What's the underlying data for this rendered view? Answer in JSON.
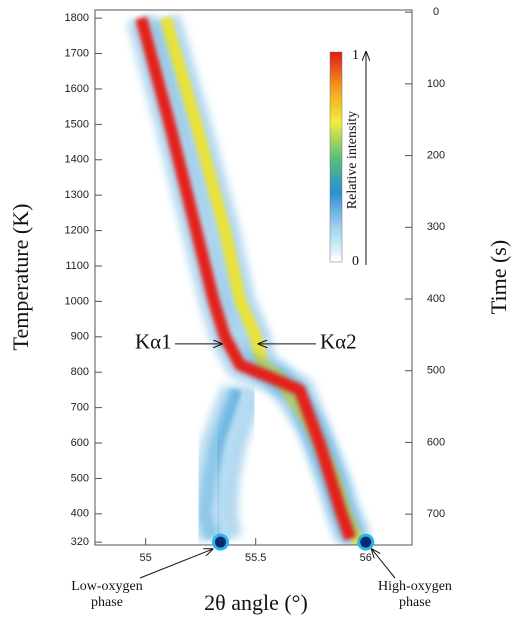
{
  "chart_data": {
    "type": "heatmap-trace",
    "xlabel": "2θ angle (°)",
    "ylabel": "Temperature (K)",
    "y2label": "Time (s)",
    "xlim": [
      54.77,
      56.21
    ],
    "xticks": [
      55,
      55.5,
      56
    ],
    "ylim": [
      312,
      1823
    ],
    "yticks": [
      320,
      400,
      500,
      600,
      700,
      800,
      900,
      1000,
      1100,
      1200,
      1300,
      1400,
      1500,
      1600,
      1700,
      1800
    ],
    "y2lim": [
      743,
      -3
    ],
    "y2ticks": [
      0,
      100,
      200,
      300,
      400,
      500,
      600,
      700
    ],
    "colorbar": {
      "label": "Relative intensity",
      "ticks": [
        0,
        1
      ],
      "colors": [
        "#ffffff",
        "#9fd0ee",
        "#2b8fd0",
        "#5cc07a",
        "#f2ee3a",
        "#f39a1e",
        "#e3181b"
      ]
    },
    "series": [
      {
        "color": "#8ec9ea",
        "x": [
          55.41,
          55.32,
          55.29,
          55.27,
          55.3
        ],
        "values": [
          750,
          600,
          500,
          400,
          330
        ]
      },
      {
        "color": "#b5dcf2",
        "x": [
          55.47,
          55.39,
          55.36,
          55.35,
          55.37
        ],
        "values": [
          750,
          600,
          500,
          400,
          330
        ]
      },
      {
        "color": "#e8e23a",
        "x": [
          55.09,
          55.23,
          55.36,
          55.43,
          55.5,
          55.53,
          55.6,
          55.75,
          55.86,
          55.91,
          55.96,
          55.99
        ],
        "values": [
          1800,
          1500,
          1200,
          1000,
          900,
          820,
          790,
          650,
          500,
          400,
          330,
          320
        ]
      },
      {
        "color": "#e3201b",
        "x": [
          54.98,
          55.11,
          55.23,
          55.31,
          55.36,
          55.43,
          55.55,
          55.7,
          55.79,
          55.84,
          55.89,
          55.93
        ],
        "values": [
          1800,
          1500,
          1200,
          1000,
          900,
          820,
          790,
          750,
          600,
          500,
          400,
          330
        ]
      }
    ],
    "annotations": [
      {
        "text": "Kα1",
        "x": 55.36,
        "y": 880
      },
      {
        "text": "Kα2",
        "x": 55.5,
        "y": 880
      }
    ],
    "markers": [
      {
        "x": 55.34,
        "y": 320,
        "label": [
          "Low-oxygen",
          "phase"
        ]
      },
      {
        "x": 56.0,
        "y": 320,
        "label": [
          "High-oxygen",
          "phase"
        ]
      }
    ]
  }
}
